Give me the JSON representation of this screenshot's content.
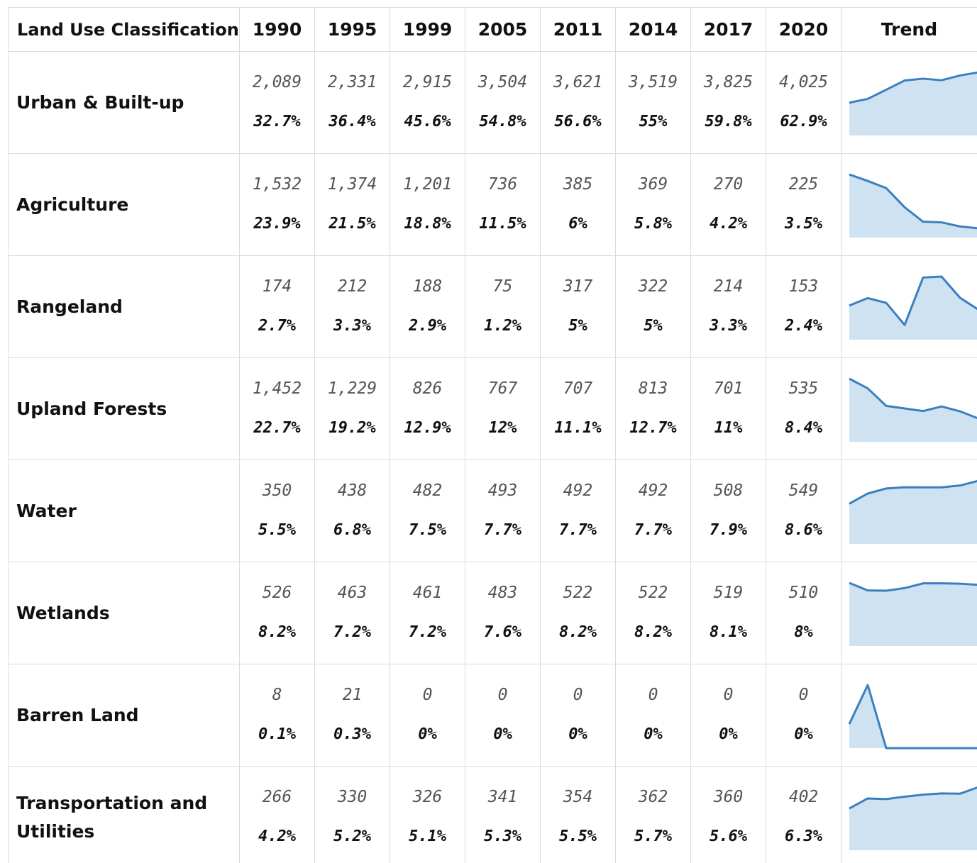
{
  "table": {
    "header": [
      "Land Use Classification",
      "1990",
      "1995",
      "1999",
      "2005",
      "2011",
      "2014",
      "2017",
      "2020",
      "Trend"
    ],
    "rows": [
      {
        "label": "Urban & Built-up",
        "values": [
          2089,
          2331,
          2915,
          3504,
          3621,
          3519,
          3825,
          4025
        ],
        "value_labels": [
          "2,089",
          "2,331",
          "2,915",
          "3,504",
          "3,621",
          "3,519",
          "3,825",
          "4,025"
        ],
        "shares": [
          "32.7%",
          "36.4%",
          "45.6%",
          "54.8%",
          "56.6%",
          "55%",
          "59.8%",
          "62.9%"
        ]
      },
      {
        "label": "Agriculture",
        "values": [
          1532,
          1374,
          1201,
          736,
          385,
          369,
          270,
          225
        ],
        "value_labels": [
          "1,532",
          "1,374",
          "1,201",
          "736",
          "385",
          "369",
          "270",
          "225"
        ],
        "shares": [
          "23.9%",
          "21.5%",
          "18.8%",
          "11.5%",
          "6%",
          "5.8%",
          "4.2%",
          "3.5%"
        ]
      },
      {
        "label": "Rangeland",
        "values": [
          174,
          212,
          188,
          75,
          317,
          322,
          214,
          153
        ],
        "shares": [
          "2.7%",
          "3.3%",
          "2.9%",
          "1.2%",
          "5%",
          "5%",
          "3.3%",
          "2.4%"
        ]
      },
      {
        "label": "Upland Forests",
        "values": [
          1452,
          1229,
          826,
          767,
          707,
          813,
          701,
          535
        ],
        "value_labels": [
          "1,452",
          "1,229",
          "826",
          "767",
          "707",
          "813",
          "701",
          "535"
        ],
        "shares": [
          "22.7%",
          "19.2%",
          "12.9%",
          "12%",
          "11.1%",
          "12.7%",
          "11%",
          "8.4%"
        ]
      },
      {
        "label": "Water",
        "values": [
          350,
          438,
          482,
          493,
          492,
          492,
          508,
          549
        ],
        "shares": [
          "5.5%",
          "6.8%",
          "7.5%",
          "7.7%",
          "7.7%",
          "7.7%",
          "7.9%",
          "8.6%"
        ]
      },
      {
        "label": "Wetlands",
        "values": [
          526,
          463,
          461,
          483,
          522,
          522,
          519,
          510
        ],
        "shares": [
          "8.2%",
          "7.2%",
          "7.2%",
          "7.6%",
          "8.2%",
          "8.2%",
          "8.1%",
          "8%"
        ]
      },
      {
        "label": "Barren Land",
        "values": [
          8,
          21,
          0,
          0,
          0,
          0,
          0,
          0
        ],
        "shares": [
          "0.1%",
          "0.3%",
          "0%",
          "0%",
          "0%",
          "0%",
          "0%",
          "0%"
        ]
      },
      {
        "label": "Transportation and Utilities",
        "values": [
          266,
          330,
          326,
          341,
          354,
          362,
          360,
          402
        ],
        "shares": [
          "4.2%",
          "5.2%",
          "5.1%",
          "5.3%",
          "5.5%",
          "5.7%",
          "5.6%",
          "6.3%"
        ]
      }
    ]
  }
}
